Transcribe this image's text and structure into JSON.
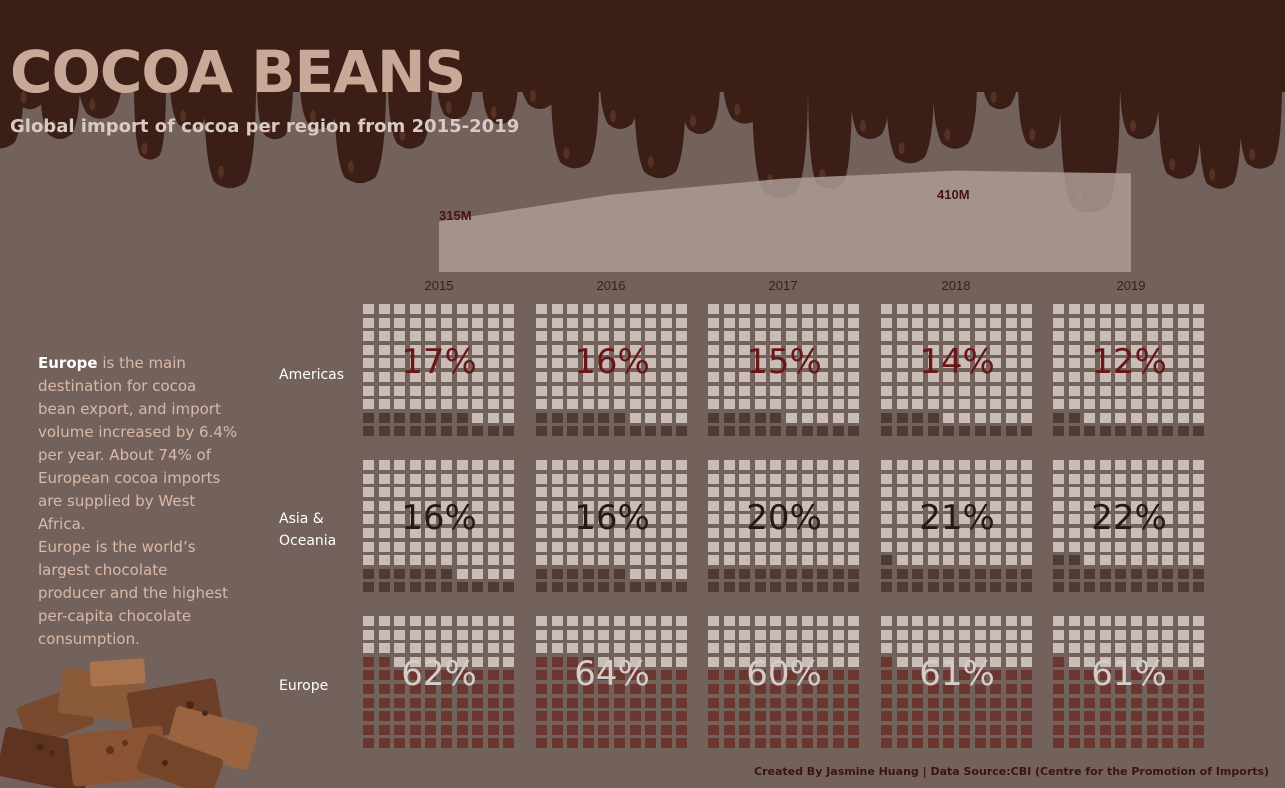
{
  "title": "COCOA BEANS",
  "subtitle": "Global import of cocoa per region from 2015-2019",
  "narrative": {
    "highlight": "Europe",
    "text_1": " is the main destination for cocoa bean export, and import volume increased by 6.4% per year. About 74% of European cocoa imports are supplied by West Africa.",
    "text_2": "Europe is the world’s largest chocolate producer and the highest per-capita chocolate consumption."
  },
  "credit": "Created By Jasmine Huang | Data Source:CBI (Centre for the Promotion of Imports)",
  "colors": {
    "background": "#73625b",
    "chocolate": "#3b1f16",
    "cell_light": "#c9bdb7",
    "cell_dark": "#4e3b33",
    "cell_europe": "#6b3630",
    "pct_americas": "#6a1616",
    "pct_asia": "#231a16",
    "pct_europe": "#d8ccc6",
    "area_fill": "#ab9c95"
  },
  "chart_data": [
    {
      "type": "area",
      "x": [
        "2015",
        "2016",
        "2017",
        "2018",
        "2019"
      ],
      "values": [
        315,
        365,
        395,
        410,
        405
      ],
      "unit": "M",
      "labels": [
        {
          "x": "2015",
          "text": "315M"
        },
        {
          "x": "2018",
          "text": "410M"
        }
      ]
    },
    {
      "type": "waffle",
      "categories": [
        "2015",
        "2016",
        "2017",
        "2018",
        "2019"
      ],
      "series": [
        {
          "name": "Americas",
          "values": [
            17,
            16,
            15,
            14,
            12
          ],
          "labels": [
            "17%",
            "16%",
            "15%",
            "14%",
            "12%"
          ]
        },
        {
          "name": "Asia & Oceania",
          "values": [
            16,
            16,
            20,
            21,
            22
          ],
          "labels": [
            "16%",
            "16%",
            "20%",
            "21%",
            "22%"
          ]
        },
        {
          "name": "Europe",
          "values": [
            62,
            64,
            60,
            61,
            61
          ],
          "labels": [
            "62%",
            "64%",
            "60%",
            "61%",
            "61%"
          ]
        }
      ]
    }
  ],
  "rows": [
    {
      "label_1": "Americas",
      "label_2": ""
    },
    {
      "label_1": "Asia &",
      "label_2": "Oceania"
    },
    {
      "label_1": "Europe",
      "label_2": ""
    }
  ],
  "icons": {
    "chocolate_illustration": "chocolate-pieces-icon",
    "drip_decoration": "chocolate-drip-icon"
  }
}
